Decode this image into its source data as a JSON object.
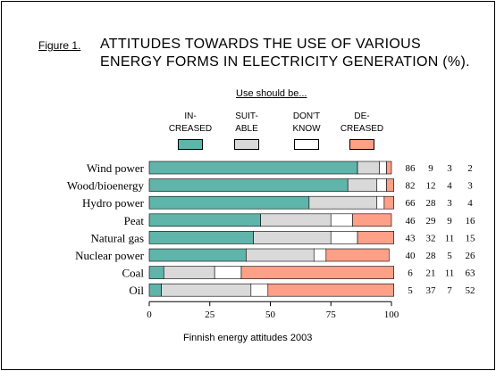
{
  "figure_label": "Figure 1.",
  "title_lines": [
    "ATTITUDES TOWARDS THE USE OF VARIOUS",
    "ENERGY FORMS IN ELECTRICITY GENERATION (%)."
  ],
  "legend_heading": "Use should be...",
  "footer": "Finnish energy attitudes 2003",
  "chart_data": {
    "type": "bar",
    "orientation": "horizontal",
    "stacked": true,
    "title": "ATTITUDES TOWARDS THE USE OF VARIOUS ENERGY FORMS IN ELECTRICITY GENERATION (%).",
    "xlabel": "",
    "ylabel": "",
    "xlim": [
      0,
      100
    ],
    "xticks": [
      0,
      25,
      50,
      75,
      100
    ],
    "grid": false,
    "legend_position": "top",
    "categories": [
      "Wind power",
      "Wood/bioenergy",
      "Hydro power",
      "Peat",
      "Natural gas",
      "Nuclear power",
      "Coal",
      "Oil"
    ],
    "series": [
      {
        "name": "IN-\nCREASED",
        "color": "#5fb5aa",
        "values": [
          86,
          82,
          66,
          46,
          43,
          40,
          6,
          5
        ]
      },
      {
        "name": "SUIT-\nABLE",
        "color": "#d9d9d9",
        "values": [
          9,
          12,
          28,
          29,
          32,
          28,
          21,
          37
        ]
      },
      {
        "name": "DON'T\nKNOW",
        "color": "#ffffff",
        "values": [
          3,
          4,
          3,
          9,
          11,
          5,
          11,
          7
        ]
      },
      {
        "name": "DE-\nCREASED",
        "color": "#fe9f87",
        "values": [
          2,
          3,
          4,
          16,
          15,
          26,
          63,
          52
        ]
      }
    ]
  }
}
